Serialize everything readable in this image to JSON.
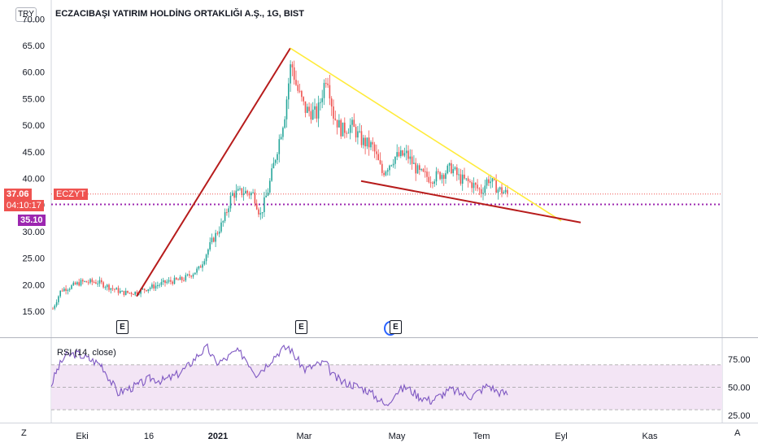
{
  "header": {
    "currency_badge": "TRY",
    "title": "ECZACIBAŞI YATIRIM HOLDİNG ORTAKLIĞI A.Ş., 1G, BIST"
  },
  "price_axis": {
    "ticks": [
      "15.00",
      "20.00",
      "25.00",
      "30.00",
      "35.00",
      "40.00",
      "45.00",
      "50.00",
      "55.00",
      "60.00",
      "65.00",
      "70.00"
    ],
    "last_price": "37.06",
    "countdown": "04:10:17",
    "symbol_tag": "ECZYT",
    "line_price": "35.10",
    "last_price_color": "#ef5350",
    "line_color": "#9c27b0"
  },
  "rsi": {
    "label": "RSI (14, close)",
    "ticks": [
      "75.00",
      "50.00",
      "25.00"
    ],
    "line_color": "#7e57c2",
    "band_color": "#f3e5f5"
  },
  "time_axis": {
    "labels": [
      "Eki",
      "16",
      "2021",
      "Mar",
      "May",
      "Tem",
      "Eyl",
      "Kas"
    ]
  },
  "event_markers": [
    "E",
    "E",
    "E"
  ],
  "corner_buttons": {
    "left": "Z",
    "right": "A"
  },
  "colors": {
    "up": "#26a69a",
    "down": "#ef5350",
    "trend_red": "#b71c1c",
    "trend_yellow": "#ffeb3b"
  },
  "chart_data": {
    "type": "candlestick",
    "symbol": "ECZYT",
    "ylim": [
      12,
      72
    ],
    "rsi_range": [
      25,
      75
    ],
    "trendlines": [
      {
        "name": "uptrend",
        "from": [
          "2020-11-10",
          18.0
        ],
        "to": [
          "2021-02-15",
          64.0
        ]
      },
      {
        "name": "upper-descending",
        "from": [
          "2021-02-15",
          64.0
        ],
        "to": [
          "2021-09-01",
          37.5
        ]
      },
      {
        "name": "lower-support",
        "from": [
          "2021-04-07",
          39.5
        ],
        "to": [
          "2021-09-10",
          32.5
        ]
      }
    ]
  }
}
